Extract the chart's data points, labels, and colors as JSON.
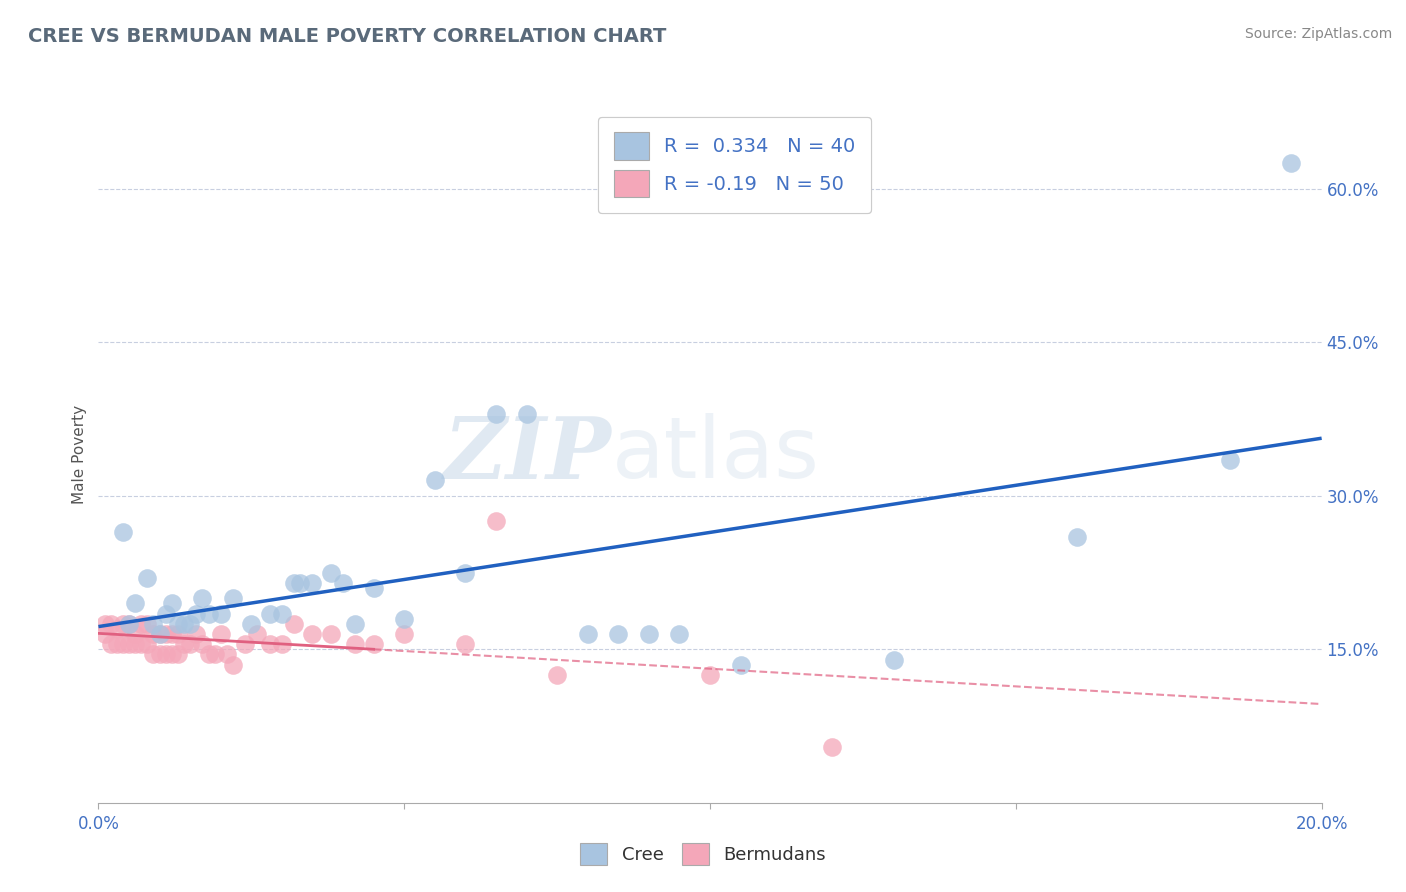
{
  "title": "CREE VS BERMUDAN MALE POVERTY CORRELATION CHART",
  "source": "Source: ZipAtlas.com",
  "ylabel": "Male Poverty",
  "ytick_labels": [
    "15.0%",
    "30.0%",
    "45.0%",
    "60.0%"
  ],
  "ytick_values": [
    0.15,
    0.3,
    0.45,
    0.6
  ],
  "xlim": [
    0.0,
    0.2
  ],
  "ylim": [
    0.0,
    0.68
  ],
  "cree_R": 0.334,
  "cree_N": 40,
  "bermuda_R": -0.19,
  "bermuda_N": 50,
  "cree_color": "#a8c4e0",
  "bermuda_color": "#f4a7b9",
  "cree_line_color": "#2060c0",
  "bermuda_line_color": "#e06080",
  "watermark_zip": "ZIP",
  "watermark_atlas": "atlas",
  "cree_points_x": [
    0.004,
    0.005,
    0.006,
    0.008,
    0.009,
    0.01,
    0.011,
    0.012,
    0.013,
    0.014,
    0.015,
    0.016,
    0.017,
    0.018,
    0.02,
    0.022,
    0.025,
    0.028,
    0.03,
    0.032,
    0.033,
    0.035,
    0.038,
    0.04,
    0.042,
    0.045,
    0.05,
    0.055,
    0.06,
    0.065,
    0.07,
    0.08,
    0.085,
    0.09,
    0.095,
    0.105,
    0.13,
    0.16,
    0.185,
    0.195
  ],
  "cree_points_y": [
    0.265,
    0.175,
    0.195,
    0.22,
    0.175,
    0.165,
    0.185,
    0.195,
    0.175,
    0.175,
    0.175,
    0.185,
    0.2,
    0.185,
    0.185,
    0.2,
    0.175,
    0.185,
    0.185,
    0.215,
    0.215,
    0.215,
    0.225,
    0.215,
    0.175,
    0.21,
    0.18,
    0.315,
    0.225,
    0.38,
    0.38,
    0.165,
    0.165,
    0.165,
    0.165,
    0.135,
    0.14,
    0.26,
    0.335,
    0.625
  ],
  "bermuda_points_x": [
    0.001,
    0.001,
    0.002,
    0.002,
    0.003,
    0.003,
    0.004,
    0.004,
    0.005,
    0.005,
    0.006,
    0.006,
    0.007,
    0.007,
    0.008,
    0.008,
    0.009,
    0.009,
    0.01,
    0.01,
    0.011,
    0.011,
    0.012,
    0.012,
    0.013,
    0.013,
    0.014,
    0.015,
    0.016,
    0.017,
    0.018,
    0.019,
    0.02,
    0.021,
    0.022,
    0.024,
    0.026,
    0.028,
    0.03,
    0.032,
    0.035,
    0.038,
    0.042,
    0.045,
    0.05,
    0.06,
    0.065,
    0.075,
    0.1,
    0.12
  ],
  "bermuda_points_y": [
    0.175,
    0.165,
    0.175,
    0.155,
    0.17,
    0.155,
    0.175,
    0.155,
    0.175,
    0.155,
    0.165,
    0.155,
    0.175,
    0.155,
    0.175,
    0.155,
    0.165,
    0.145,
    0.165,
    0.145,
    0.165,
    0.145,
    0.165,
    0.145,
    0.165,
    0.145,
    0.155,
    0.155,
    0.165,
    0.155,
    0.145,
    0.145,
    0.165,
    0.145,
    0.135,
    0.155,
    0.165,
    0.155,
    0.155,
    0.175,
    0.165,
    0.165,
    0.155,
    0.155,
    0.165,
    0.155,
    0.275,
    0.125,
    0.125,
    0.055
  ]
}
